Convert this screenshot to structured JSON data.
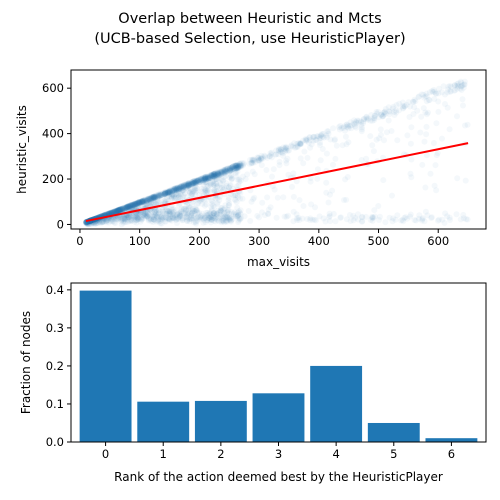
{
  "figure": {
    "title_line1": "Overlap between Heuristic and Mcts",
    "title_line2": "(UCB-based Selection, use HeuristicPlayer)"
  },
  "chart_data": [
    {
      "type": "scatter",
      "xlabel": "max_visits",
      "ylabel": "heuristic_visits",
      "xticks": [
        0,
        100,
        200,
        300,
        400,
        500,
        600
      ],
      "yticks": [
        0,
        200,
        400,
        600
      ],
      "xlim": [
        -15,
        680
      ],
      "ylim": [
        -20,
        680
      ],
      "point_color": "#1f77b4",
      "point_alpha": 0.05,
      "point_cloud": {
        "upper_edge": "heuristic_visits ≈ max_visits",
        "dense_region_x": [
          10,
          270
        ],
        "sparse_region_x": [
          270,
          650
        ],
        "max_x": 650,
        "max_y": 650
      },
      "fit_line": {
        "color": "#ff0000",
        "x": [
          10,
          650
        ],
        "y": [
          15,
          358
        ]
      },
      "grid": false,
      "legend": "none"
    },
    {
      "type": "bar",
      "xlabel": "Rank of the action deemed best by the HeuristicPlayer",
      "ylabel": "Fraction of nodes",
      "categories": [
        "0",
        "1",
        "2",
        "3",
        "4",
        "5",
        "6"
      ],
      "values": [
        0.398,
        0.106,
        0.108,
        0.128,
        0.2,
        0.05,
        0.01
      ],
      "yticks": [
        "0.0",
        "0.1",
        "0.2",
        "0.3",
        "0.4"
      ],
      "ylim": [
        0,
        0.418
      ],
      "bar_color": "#1f77b4",
      "grid": false,
      "legend": "none"
    }
  ]
}
